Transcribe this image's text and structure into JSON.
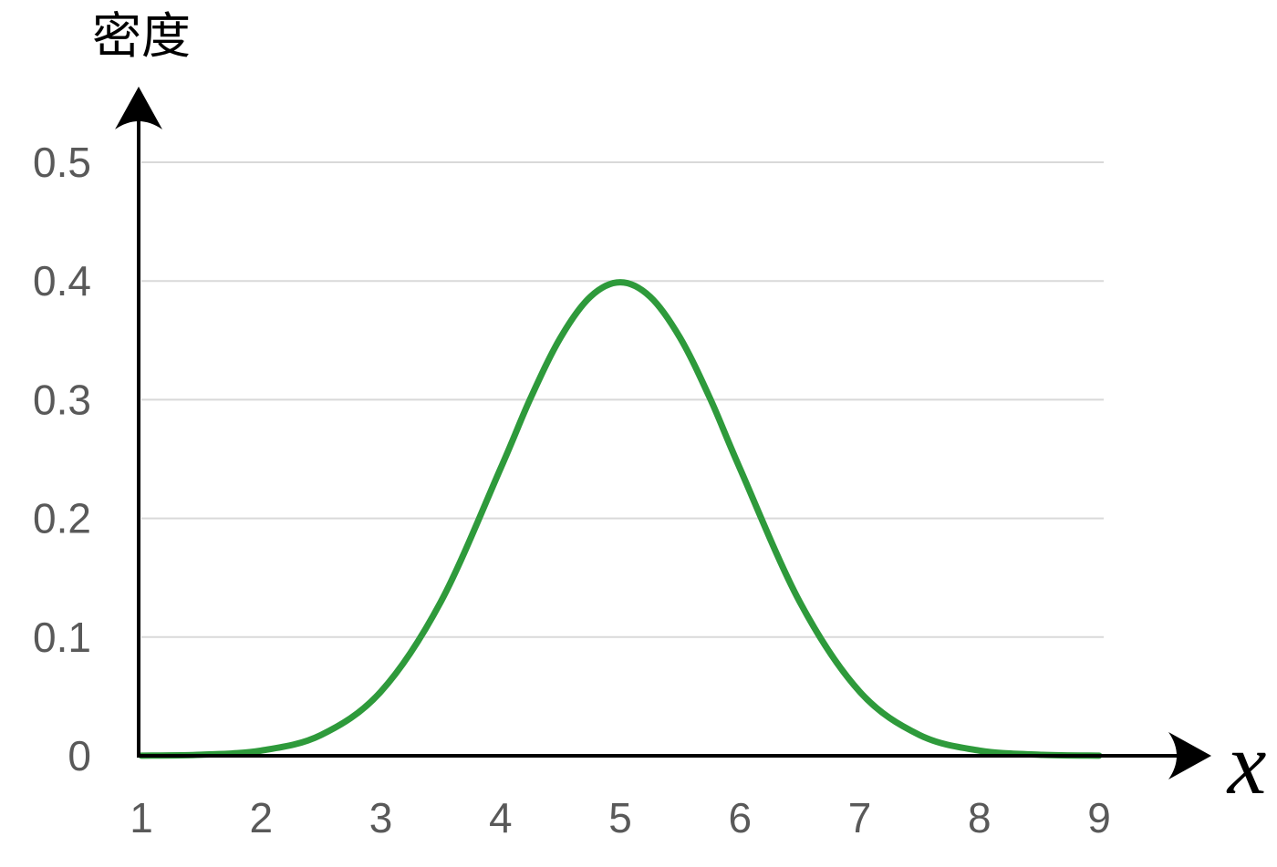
{
  "chart_data": {
    "type": "line",
    "title": "",
    "xlabel": "x",
    "ylabel": "密度",
    "x_ticks": [
      "1",
      "2",
      "3",
      "4",
      "5",
      "6",
      "7",
      "8",
      "9"
    ],
    "y_ticks": [
      "0",
      "0.1",
      "0.2",
      "0.3",
      "0.4",
      "0.5"
    ],
    "xlim": [
      1,
      9
    ],
    "ylim": [
      0,
      0.5
    ],
    "grid": true,
    "legend": "none",
    "colors": {
      "line": "#2e9a3b",
      "axis": "#000000",
      "grid": "#d9d9d9",
      "tick_text": "#595959"
    },
    "series": [
      {
        "x": [
          1,
          1.5,
          2,
          2.5,
          3,
          3.5,
          4,
          4.25,
          4.5,
          4.75,
          5,
          5.25,
          5.5,
          5.75,
          6,
          6.5,
          7,
          7.5,
          8,
          8.5,
          9
        ],
        "values": [
          0.0001,
          0.0009,
          0.0044,
          0.0175,
          0.054,
          0.1295,
          0.242,
          0.3011,
          0.3521,
          0.3867,
          0.3989,
          0.3867,
          0.3521,
          0.3011,
          0.242,
          0.1295,
          0.054,
          0.0175,
          0.0044,
          0.0009,
          0.0001
        ]
      }
    ]
  }
}
